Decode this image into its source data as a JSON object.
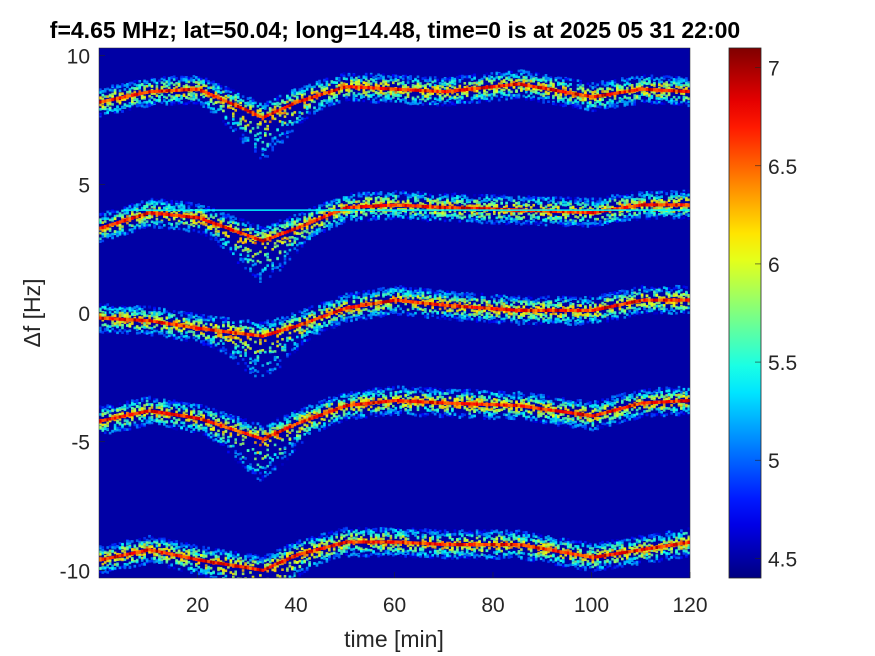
{
  "chart_data": {
    "type": "heatmap",
    "title": "f=4.65 MHz;  lat=50.04; long=14.48, time=0 is at 2025 05 31 22:00",
    "xlabel": "time [min]",
    "ylabel": "Δf [Hz]",
    "xlim": [
      0,
      120
    ],
    "ylim": [
      -10.3,
      10.3
    ],
    "xticks": [
      20,
      40,
      60,
      80,
      100,
      120
    ],
    "yticks": [
      -10,
      -5,
      0,
      5,
      10
    ],
    "xtick_labels": [
      "20",
      "40",
      "60",
      "80",
      "100",
      "120"
    ],
    "ytick_labels": [
      "-10",
      "-5",
      "0",
      "5",
      "10"
    ],
    "grid": false,
    "colorbar": {
      "clim": [
        4.4,
        7.1
      ],
      "ticks": [
        4.5,
        5,
        5.5,
        6,
        6.5,
        7
      ],
      "tick_labels": [
        "4.5",
        "5",
        "5.5",
        "6",
        "6.5",
        "7"
      ],
      "colormap": "jet"
    },
    "background_value": 4.5,
    "bands": [
      {
        "center_hz": 8.2,
        "trace_x": [
          0,
          10,
          20,
          33,
          40,
          50,
          60,
          70,
          85,
          100,
          110,
          120
        ],
        "trace_y": [
          8.2,
          8.6,
          8.7,
          7.6,
          8.2,
          8.8,
          8.7,
          8.6,
          8.9,
          8.4,
          8.7,
          8.6
        ]
      },
      {
        "center_hz": 3.8,
        "trace_x": [
          0,
          10,
          20,
          33,
          40,
          50,
          60,
          70,
          85,
          100,
          110,
          120
        ],
        "trace_y": [
          3.3,
          3.9,
          3.7,
          2.8,
          3.3,
          4.1,
          4.2,
          4.1,
          4.0,
          3.9,
          4.2,
          4.2
        ]
      },
      {
        "center_hz": -0.2,
        "trace_x": [
          0,
          10,
          20,
          33,
          40,
          50,
          60,
          70,
          85,
          100,
          110,
          120
        ],
        "trace_y": [
          -0.2,
          -0.3,
          -0.6,
          -0.9,
          -0.5,
          0.2,
          0.5,
          0.3,
          0.1,
          0.1,
          0.5,
          0.5
        ]
      },
      {
        "center_hz": -4.0,
        "trace_x": [
          0,
          10,
          20,
          33,
          40,
          50,
          60,
          70,
          85,
          100,
          110,
          120
        ],
        "trace_y": [
          -4.2,
          -3.8,
          -4.1,
          -4.9,
          -4.3,
          -3.6,
          -3.4,
          -3.5,
          -3.6,
          -4.0,
          -3.5,
          -3.4
        ]
      },
      {
        "center_hz": -9.5,
        "trace_x": [
          0,
          10,
          20,
          33,
          40,
          50,
          60,
          70,
          85,
          100,
          110,
          120
        ],
        "trace_y": [
          -9.6,
          -9.2,
          -9.6,
          -10.0,
          -9.4,
          -8.9,
          -8.9,
          -9.0,
          -9.0,
          -9.5,
          -9.2,
          -8.9
        ]
      }
    ],
    "horizontal_line_hz": 4.0,
    "horizontal_line_xrange": [
      5,
      120
    ]
  }
}
